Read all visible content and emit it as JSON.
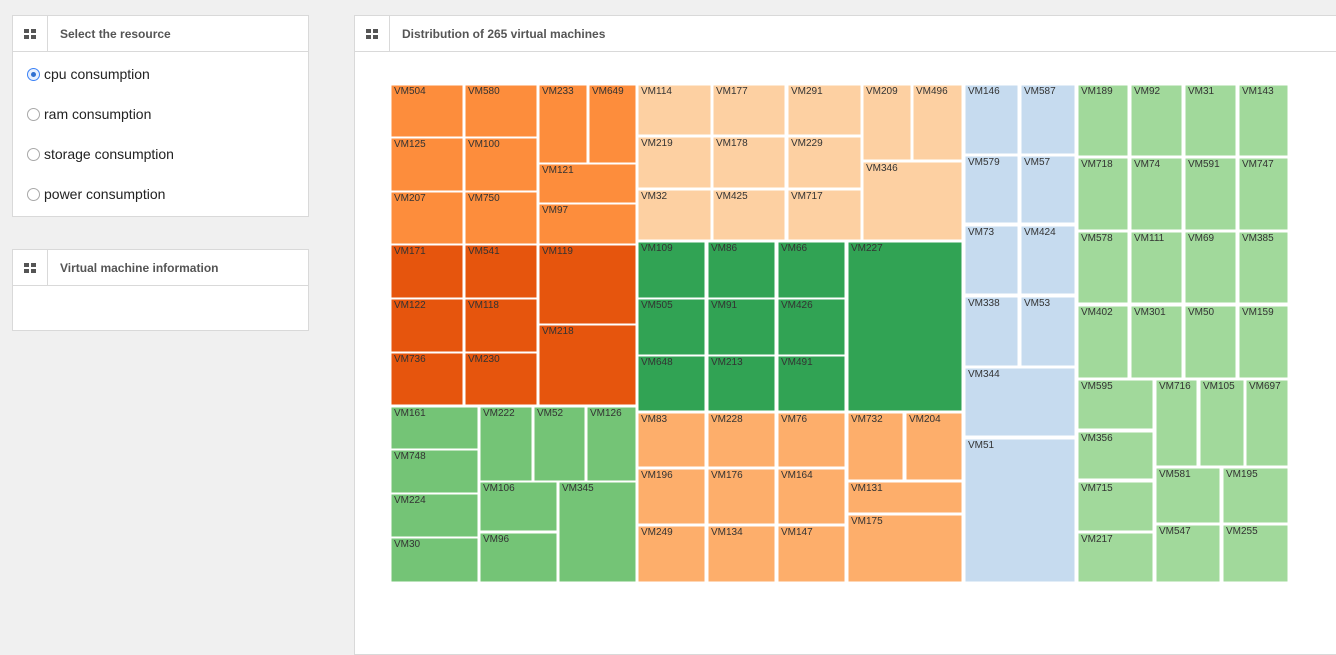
{
  "resource_panel": {
    "title": "Select the resource",
    "options": [
      {
        "label": "cpu consumption",
        "checked": true
      },
      {
        "label": "ram consumption",
        "checked": false
      },
      {
        "label": "storage consumption",
        "checked": false
      },
      {
        "label": "power consumption",
        "checked": false
      }
    ]
  },
  "info_panel": {
    "title": "Virtual machine information"
  },
  "distribution_panel": {
    "title": "Distribution of 265 virtual machines"
  },
  "chart_data": {
    "type": "treemap",
    "title": "Distribution of 265 virtual machines",
    "metric": "cpu consumption",
    "groups": [
      {
        "color": "#fd8d3c",
        "items": [
          "VM504",
          "VM580",
          "VM233",
          "VM649",
          "VM125",
          "VM100",
          "VM121",
          "VM207",
          "VM750",
          "VM97"
        ]
      },
      {
        "color": "#e6550d",
        "items": [
          "VM171",
          "VM541",
          "VM119",
          "VM122",
          "VM118",
          "VM218",
          "VM736",
          "VM230"
        ]
      },
      {
        "color": "#74c476",
        "items": [
          "VM161",
          "VM222",
          "VM52",
          "VM126",
          "VM748",
          "VM224",
          "VM106",
          "VM345",
          "VM30",
          "VM96"
        ]
      },
      {
        "color": "#fdd0a2",
        "items": [
          "VM114",
          "VM177",
          "VM291",
          "VM209",
          "VM496",
          "VM219",
          "VM178",
          "VM229",
          "VM346",
          "VM32",
          "VM425",
          "VM717"
        ]
      },
      {
        "color": "#31a354",
        "items": [
          "VM109",
          "VM86",
          "VM66",
          "VM227",
          "VM505",
          "VM91",
          "VM426",
          "VM648",
          "VM213",
          "VM491"
        ]
      },
      {
        "color": "#fdae6b",
        "items": [
          "VM83",
          "VM228",
          "VM76",
          "VM732",
          "VM204",
          "VM196",
          "VM176",
          "VM164",
          "VM131",
          "VM175",
          "VM249",
          "VM134",
          "VM147"
        ]
      },
      {
        "color": "#c6dbef",
        "items": [
          "VM146",
          "VM587",
          "VM579",
          "VM57",
          "VM73",
          "VM424",
          "VM338",
          "VM53",
          "VM344",
          "VM51"
        ]
      },
      {
        "color": "#a1d99b",
        "items": [
          "VM189",
          "VM92",
          "VM31",
          "VM143",
          "VM718",
          "VM74",
          "VM591",
          "VM747",
          "VM578",
          "VM111",
          "VM69",
          "VM385",
          "VM402",
          "VM301",
          "VM50",
          "VM159",
          "VM595",
          "VM716",
          "VM105",
          "VM697",
          "VM356",
          "VM715",
          "VM581",
          "VM195",
          "VM217",
          "VM547",
          "VM255"
        ]
      }
    ]
  }
}
